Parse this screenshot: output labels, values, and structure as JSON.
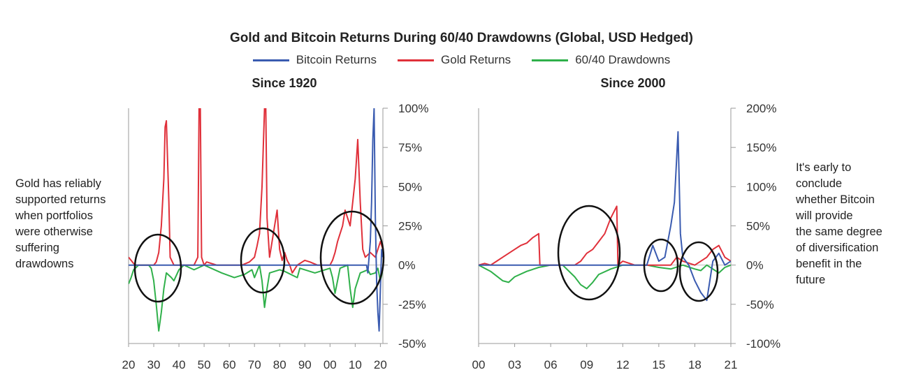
{
  "title": "Gold and Bitcoin Returns During 60/40 Drawdowns (Global, USD Hedged)",
  "legend": [
    {
      "label": "Bitcoin Returns",
      "color": "#3a5bb0"
    },
    {
      "label": "Gold Returns",
      "color": "#e0303a"
    },
    {
      "label": "60/40 Drawdowns",
      "color": "#2fb04a"
    }
  ],
  "annotations": {
    "left": [
      "Gold has reliably",
      "supported returns",
      "when portfolios",
      "were otherwise",
      "suffering",
      "drawdowns"
    ],
    "right": [
      "It's early to",
      "conclude",
      "whether Bitcoin",
      "will provide",
      "the same degree",
      "of diversification",
      "benefit in the",
      "future"
    ]
  },
  "chart_data": [
    {
      "type": "line",
      "title": "Since 1920",
      "x_tick_labels": [
        "20",
        "30",
        "40",
        "50",
        "60",
        "70",
        "80",
        "90",
        "00",
        "10",
        "20"
      ],
      "x_ticks": [
        1920,
        1930,
        1940,
        1950,
        1960,
        1970,
        1980,
        1990,
        2000,
        2010,
        2020
      ],
      "xlim": [
        1920,
        2021
      ],
      "y_tick_labels": [
        "100%",
        "75%",
        "50%",
        "25%",
        "0%",
        "-25%",
        "-50%"
      ],
      "y_ticks": [
        100,
        75,
        50,
        25,
        0,
        -25,
        -50
      ],
      "ylim": [
        -50,
        100
      ],
      "series": [
        {
          "name": "Gold Returns",
          "color": "#e0303a",
          "x": [
            1920,
            1921,
            1922,
            1923,
            1925,
            1928,
            1930,
            1931,
            1932,
            1933,
            1934,
            1934.5,
            1935,
            1936,
            1936.5,
            1938,
            1940,
            1943,
            1946,
            1947.5,
            1948,
            1948.5,
            1949,
            1950,
            1951,
            1955,
            1960,
            1965,
            1968,
            1970,
            1971,
            1972,
            1973,
            1974,
            1974.5,
            1975,
            1976,
            1977,
            1978,
            1979,
            1980,
            1981,
            1982,
            1983,
            1984,
            1985,
            1987,
            1990,
            1992,
            1995,
            1998,
            2000,
            2001,
            2002,
            2003,
            2004,
            2005,
            2006,
            2007,
            2008,
            2009,
            2010,
            2011,
            2012,
            2013,
            2014,
            2016,
            2018,
            2019,
            2020,
            2021
          ],
          "y": [
            5,
            3,
            1,
            0,
            0,
            0,
            0,
            2,
            8,
            25,
            55,
            88,
            92,
            40,
            5,
            0,
            0,
            0,
            0,
            5,
            100,
            100,
            5,
            0,
            2,
            0,
            0,
            0,
            2,
            5,
            12,
            20,
            50,
            100,
            100,
            30,
            5,
            15,
            25,
            35,
            10,
            3,
            8,
            3,
            0,
            -5,
            0,
            3,
            2,
            0,
            0,
            0,
            3,
            8,
            15,
            20,
            25,
            35,
            30,
            25,
            40,
            55,
            80,
            40,
            10,
            5,
            8,
            5,
            10,
            15,
            10
          ]
        },
        {
          "name": "Bitcoin Returns",
          "color": "#3a5bb0",
          "x": [
            1920,
            2014.5,
            2015,
            2015.5,
            2016,
            2016.5,
            2017,
            2017.5,
            2018,
            2018.5,
            2019,
            2019.5,
            2020,
            2020.5,
            2021
          ],
          "y": [
            0,
            0,
            -5,
            5,
            15,
            40,
            80,
            100,
            30,
            -10,
            -30,
            -42,
            -15,
            10,
            5
          ]
        },
        {
          "name": "60/40 Drawdowns",
          "color": "#2fb04a",
          "x": [
            1920,
            1921,
            1922,
            1924,
            1928,
            1929,
            1930,
            1931,
            1932,
            1933,
            1934,
            1935,
            1937,
            1938,
            1940,
            1942,
            1946,
            1950,
            1957,
            1962,
            1966,
            1969,
            1970,
            1972,
            1973,
            1974,
            1975,
            1976,
            1980,
            1982,
            1987,
            1988,
            1990,
            1994,
            2000,
            2001,
            2002,
            2003,
            2004,
            2007,
            2008,
            2009,
            2010,
            2012,
            2015,
            2016,
            2018,
            2019,
            2020,
            2021
          ],
          "y": [
            -12,
            -8,
            -3,
            0,
            0,
            -2,
            -10,
            -25,
            -42,
            -30,
            -15,
            -5,
            -8,
            -10,
            -3,
            0,
            -3,
            0,
            -5,
            -8,
            -6,
            -3,
            -8,
            0,
            -10,
            -27,
            -15,
            -5,
            -3,
            -4,
            -8,
            -2,
            -3,
            -5,
            -2,
            -8,
            -18,
            -10,
            -2,
            0,
            -15,
            -27,
            -15,
            -5,
            -3,
            -6,
            -5,
            -2,
            -10,
            -3
          ]
        }
      ]
    },
    {
      "type": "line",
      "title": "Since 2000",
      "x_tick_labels": [
        "00",
        "03",
        "06",
        "09",
        "12",
        "15",
        "18",
        "21"
      ],
      "x_ticks": [
        2000,
        2003,
        2006,
        2009,
        2012,
        2015,
        2018,
        2021
      ],
      "xlim": [
        2000,
        2021
      ],
      "y_tick_labels": [
        "200%",
        "150%",
        "100%",
        "50%",
        "0%",
        "-50%",
        "-100%"
      ],
      "y_ticks": [
        200,
        150,
        100,
        50,
        0,
        -50,
        -100
      ],
      "ylim": [
        -100,
        200
      ],
      "series": [
        {
          "name": "Gold Returns",
          "color": "#e0303a",
          "x": [
            2000,
            2000.5,
            2001,
            2001.5,
            2002,
            2002.5,
            2003,
            2003.5,
            2004,
            2004.5,
            2005,
            2005.1,
            2006,
            2007,
            2008,
            2008.5,
            2009,
            2009.5,
            2010,
            2010.5,
            2011,
            2011.5,
            2011.6,
            2012,
            2013,
            2014,
            2015,
            2016,
            2016.5,
            2017,
            2018,
            2019,
            2019.5,
            2020,
            2020.5,
            2021
          ],
          "y": [
            0,
            2,
            0,
            5,
            10,
            15,
            20,
            25,
            28,
            35,
            40,
            0,
            0,
            0,
            0,
            5,
            15,
            20,
            30,
            40,
            60,
            75,
            0,
            5,
            0,
            0,
            0,
            0,
            10,
            5,
            0,
            10,
            20,
            25,
            10,
            5
          ]
        },
        {
          "name": "Bitcoin Returns",
          "color": "#3a5bb0",
          "x": [
            2000,
            2014,
            2014.5,
            2015,
            2015.5,
            2016,
            2016.3,
            2016.6,
            2016.8,
            2017,
            2017.5,
            2018,
            2018.5,
            2019,
            2019.5,
            2020,
            2020.5,
            2021
          ],
          "y": [
            0,
            0,
            25,
            5,
            10,
            50,
            80,
            170,
            40,
            10,
            0,
            -20,
            -35,
            -45,
            5,
            15,
            0,
            5
          ]
        },
        {
          "name": "60/40 Drawdowns",
          "color": "#2fb04a",
          "x": [
            2000,
            2001,
            2002,
            2002.5,
            2003,
            2004,
            2005,
            2006,
            2007,
            2008,
            2008.5,
            2009,
            2009.5,
            2010,
            2011,
            2012,
            2013,
            2014,
            2015,
            2016,
            2017,
            2018,
            2018.5,
            2019,
            2020,
            2020.5,
            2021
          ],
          "y": [
            0,
            -8,
            -20,
            -22,
            -15,
            -8,
            -3,
            0,
            0,
            -15,
            -25,
            -30,
            -22,
            -12,
            -5,
            0,
            0,
            0,
            -3,
            -5,
            0,
            -5,
            -7,
            0,
            -10,
            -3,
            0
          ]
        }
      ]
    }
  ]
}
